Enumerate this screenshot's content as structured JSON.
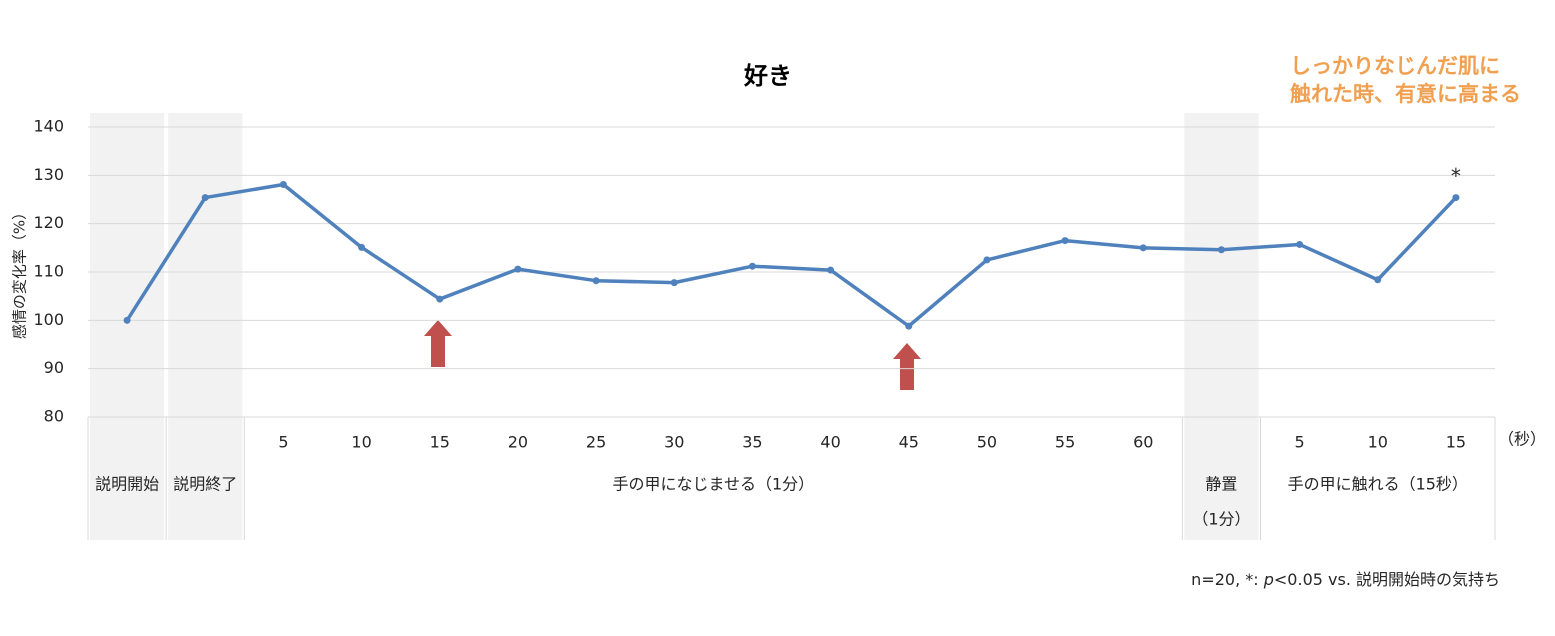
{
  "chart_data": {
    "type": "line",
    "title": "好き",
    "y_label": "感情の変化率（%）",
    "x_unit": "（秒）",
    "annotation_lines": [
      "しっかりなじんだ肌に",
      "触れた時、有意に高まる"
    ],
    "footnote": [
      "n=20, *: ",
      "p",
      "<0.05 vs. 説明開始時の気持ち"
    ],
    "categories": [
      null,
      null,
      "5",
      "10",
      "15",
      "20",
      "25",
      "30",
      "35",
      "40",
      "45",
      "50",
      "55",
      "60",
      null,
      "5",
      "10",
      "15"
    ],
    "groups": [
      {
        "label": "説明開始",
        "span": 1,
        "shaded": true
      },
      {
        "label": "説明終了",
        "span": 1,
        "shaded": true
      },
      {
        "label": "手の甲になじませる（1分）",
        "span": 12,
        "shaded": false
      },
      {
        "label": "静置",
        "sublabel": "（1分）",
        "span": 1,
        "shaded": true
      },
      {
        "label": "手の甲に触れる（15秒）",
        "span": 3,
        "shaded": false
      }
    ],
    "series": [
      {
        "color": "#4f81bd",
        "values": [
          100,
          125.4,
          128.1,
          115.1,
          104.4,
          110.6,
          108.2,
          107.8,
          111.2,
          110.4,
          98.8,
          112.5,
          116.5,
          115.0,
          114.6,
          115.7,
          108.4,
          125.4
        ],
        "value_labels": [
          null,
          null,
          null,
          null,
          null,
          null,
          null,
          null,
          null,
          null,
          null,
          null,
          null,
          null,
          null,
          null,
          null,
          "*"
        ]
      }
    ],
    "ylim": [
      80,
      140
    ],
    "yticks": [
      80,
      90,
      100,
      110,
      120,
      130,
      140
    ],
    "grid": true
  }
}
